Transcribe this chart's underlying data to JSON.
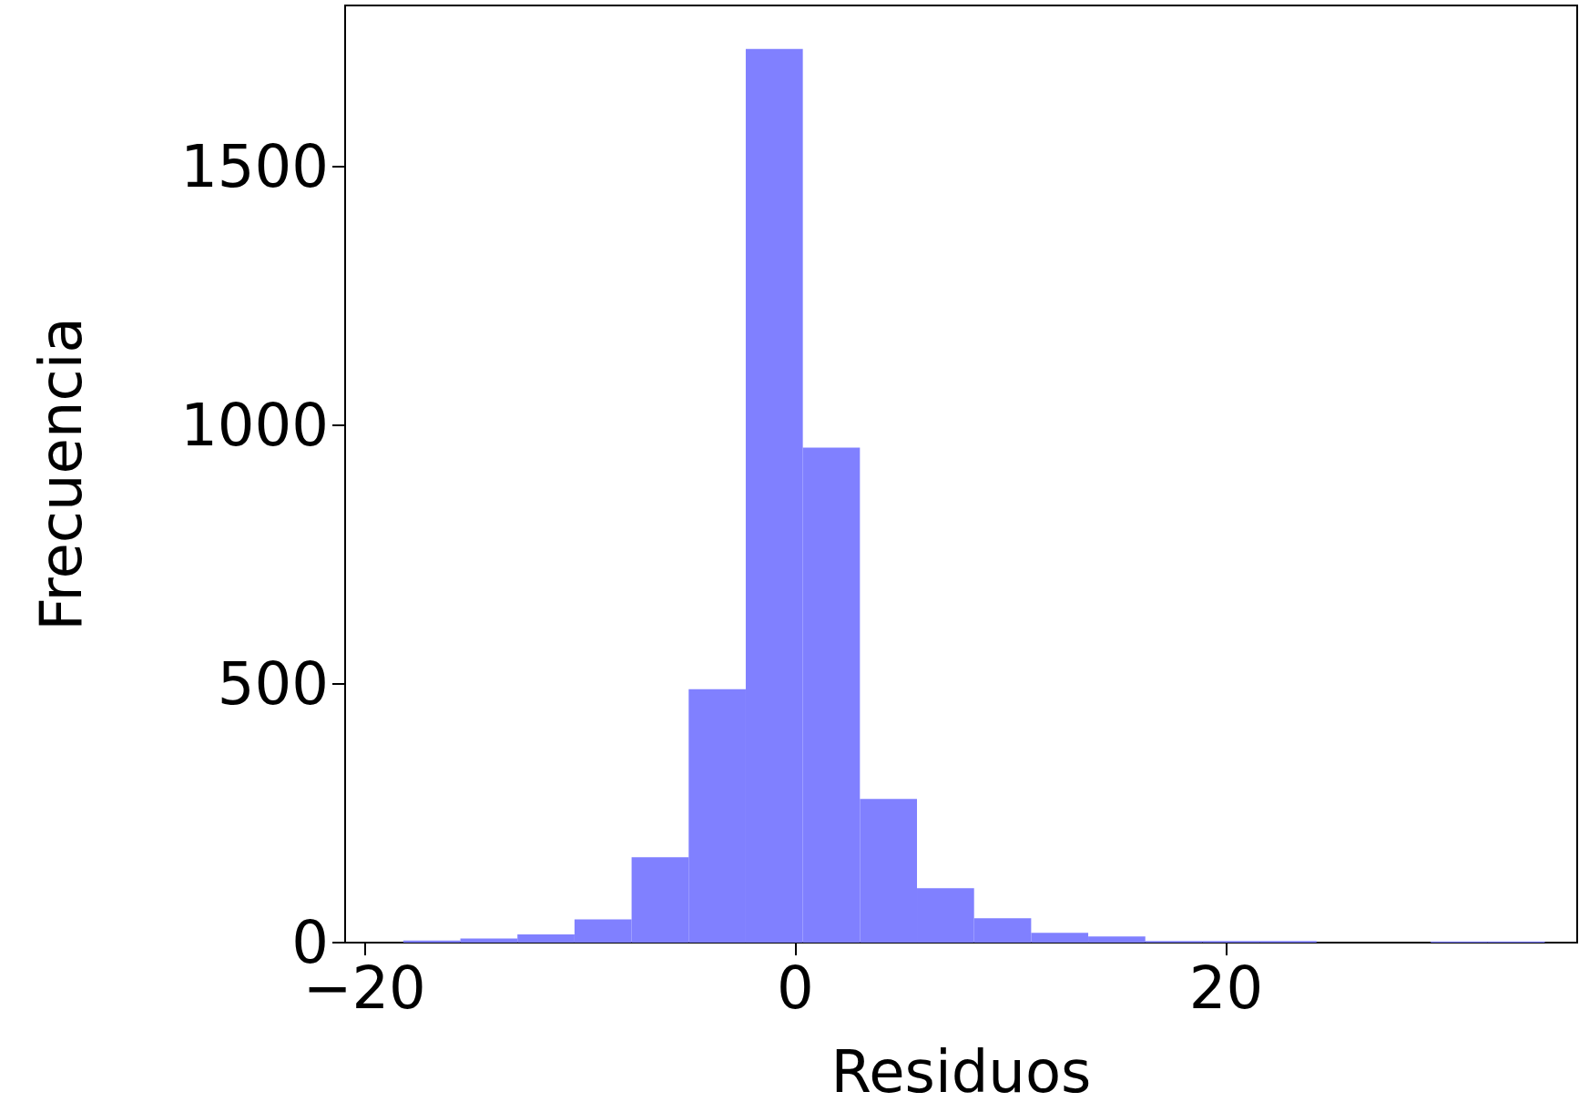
{
  "chart_data": {
    "type": "histogram",
    "xlabel": "Residuos",
    "ylabel": "Frecuencia",
    "color": "#8080ff",
    "bins": [
      -18.2,
      -15.55,
      -12.9,
      -10.25,
      -7.6,
      -4.95,
      -2.3,
      0.35,
      3.0,
      5.65,
      8.3,
      10.95,
      13.6,
      16.25,
      18.9,
      21.55,
      24.2,
      26.85,
      29.5,
      32.15,
      34.8
    ],
    "values": [
      4,
      8,
      16,
      45,
      165,
      490,
      1728,
      957,
      278,
      105,
      47,
      19,
      12,
      3,
      3,
      3,
      0,
      0,
      2,
      2
    ],
    "xlim": [
      -20.9,
      36.3
    ],
    "ylim": [
      0,
      1812
    ],
    "xticks": [
      {
        "value": -20,
        "label": "−20"
      },
      0,
      20
    ],
    "yticks": [
      0,
      500,
      1000,
      1500
    ],
    "grid": false
  }
}
